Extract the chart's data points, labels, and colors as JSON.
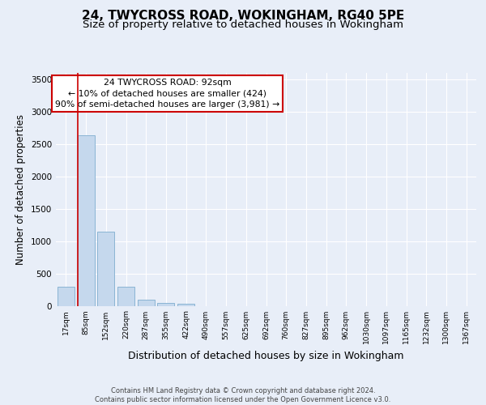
{
  "title1": "24, TWYCROSS ROAD, WOKINGHAM, RG40 5PE",
  "title2": "Size of property relative to detached houses in Wokingham",
  "xlabel": "Distribution of detached houses by size in Wokingham",
  "ylabel": "Number of detached properties",
  "bar_labels": [
    "17sqm",
    "85sqm",
    "152sqm",
    "220sqm",
    "287sqm",
    "355sqm",
    "422sqm",
    "490sqm",
    "557sqm",
    "625sqm",
    "692sqm",
    "760sqm",
    "827sqm",
    "895sqm",
    "962sqm",
    "1030sqm",
    "1097sqm",
    "1165sqm",
    "1232sqm",
    "1300sqm",
    "1367sqm"
  ],
  "bar_values": [
    290,
    2630,
    1140,
    300,
    90,
    45,
    30,
    0,
    0,
    0,
    0,
    0,
    0,
    0,
    0,
    0,
    0,
    0,
    0,
    0,
    0
  ],
  "bar_color": "#c5d8ed",
  "bar_edge_color": "#8ab4d4",
  "annotation_text": "24 TWYCROSS ROAD: 92sqm\n← 10% of detached houses are smaller (424)\n90% of semi-detached houses are larger (3,981) →",
  "annotation_box_color": "#ffffff",
  "annotation_box_edge_color": "#cc0000",
  "vline_color": "#cc0000",
  "ylim": [
    0,
    3600
  ],
  "yticks": [
    0,
    500,
    1000,
    1500,
    2000,
    2500,
    3000,
    3500
  ],
  "bg_color": "#e8eef8",
  "plot_bg_color": "#e8eef8",
  "footer_text": "Contains HM Land Registry data © Crown copyright and database right 2024.\nContains public sector information licensed under the Open Government Licence v3.0.",
  "title1_fontsize": 11,
  "title2_fontsize": 9.5,
  "xlabel_fontsize": 9,
  "ylabel_fontsize": 8.5
}
